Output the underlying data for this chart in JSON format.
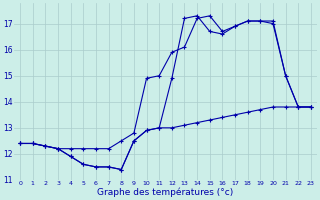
{
  "xlabel": "Graphe des températures (°c)",
  "bg_color": "#cceee8",
  "line_color": "#0000aa",
  "grid_color": "#aacccc",
  "hours": [
    0,
    1,
    2,
    3,
    4,
    5,
    6,
    7,
    8,
    9,
    10,
    11,
    12,
    13,
    14,
    15,
    16,
    17,
    18,
    19,
    20,
    21,
    22,
    23
  ],
  "temp_line1": [
    12.4,
    12.4,
    12.3,
    12.2,
    11.9,
    11.6,
    11.5,
    11.5,
    11.4,
    12.5,
    12.9,
    13.0,
    14.9,
    17.2,
    17.3,
    16.7,
    16.6,
    16.9,
    17.1,
    17.1,
    17.0,
    15.0,
    13.8,
    13.8
  ],
  "temp_line2": [
    12.4,
    12.4,
    12.3,
    12.2,
    12.2,
    12.2,
    12.2,
    12.2,
    12.5,
    12.8,
    14.9,
    15.0,
    15.9,
    16.1,
    17.2,
    17.3,
    16.7,
    16.9,
    17.1,
    17.1,
    17.1,
    15.0,
    13.8,
    13.8
  ],
  "temp_line3": [
    12.4,
    12.4,
    12.3,
    12.2,
    11.9,
    11.6,
    11.5,
    11.5,
    11.4,
    12.5,
    12.9,
    13.0,
    13.0,
    13.1,
    13.2,
    13.3,
    13.4,
    13.5,
    13.6,
    13.7,
    13.8,
    13.8,
    13.8,
    13.8
  ],
  "ylim": [
    11.0,
    17.8
  ],
  "yticks": [
    11,
    12,
    13,
    14,
    15,
    16,
    17
  ],
  "xlim": [
    -0.5,
    23.5
  ]
}
